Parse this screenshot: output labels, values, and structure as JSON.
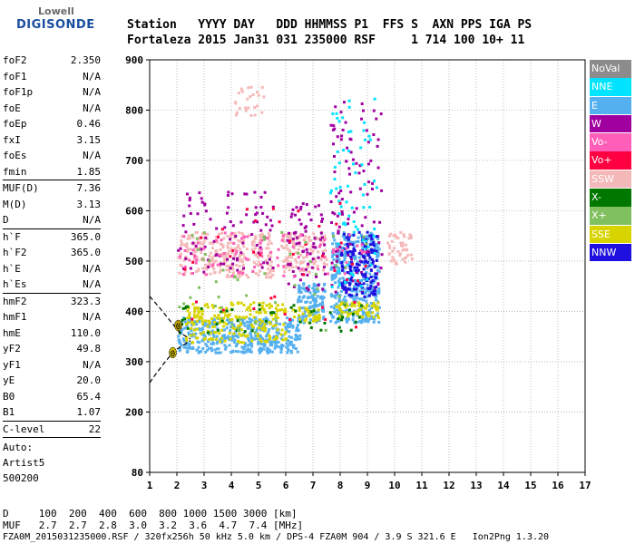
{
  "logo": {
    "line1": "Lowell",
    "line2": "DIGISONDE"
  },
  "header": {
    "labels": "Station   YYYY DAY   DDD HHMMSS P1  FFS S  AXN PPS IGA PS",
    "values": "Fortaleza 2015 Jan31 031 235000 RSF     1 714 100 10+ 11"
  },
  "params": {
    "group1": [
      {
        "k": "foF2",
        "v": "2.350"
      },
      {
        "k": "foF1",
        "v": "N/A"
      },
      {
        "k": "foF1p",
        "v": "N/A"
      },
      {
        "k": "foE",
        "v": "N/A"
      },
      {
        "k": "foEp",
        "v": "0.46"
      },
      {
        "k": "fxI",
        "v": "3.15"
      },
      {
        "k": "foEs",
        "v": "N/A"
      },
      {
        "k": "fmin",
        "v": "1.85"
      }
    ],
    "group2": [
      {
        "k": "MUF(D)",
        "v": "7.36"
      },
      {
        "k": "M(D)",
        "v": "3.13"
      },
      {
        "k": "D",
        "v": "N/A"
      }
    ],
    "group3": [
      {
        "k": "h`F",
        "v": "365.0"
      },
      {
        "k": "h`F2",
        "v": "365.0"
      },
      {
        "k": "h`E",
        "v": "N/A"
      },
      {
        "k": "h`Es",
        "v": "N/A"
      }
    ],
    "group4": [
      {
        "k": "hmF2",
        "v": "323.3"
      },
      {
        "k": "hmF1",
        "v": "N/A"
      },
      {
        "k": "hmE",
        "v": "110.0"
      },
      {
        "k": "yF2",
        "v": "49.8"
      },
      {
        "k": "yF1",
        "v": "N/A"
      },
      {
        "k": "yE",
        "v": "20.0"
      },
      {
        "k": "B0",
        "v": "65.4"
      },
      {
        "k": "B1",
        "v": "1.07"
      }
    ],
    "clevel": {
      "k": "C-level",
      "v": "22"
    },
    "auto": [
      "Auto:",
      "Artist5",
      "500200"
    ]
  },
  "legend": [
    {
      "label": "NoVal",
      "color": "#8c8c8c"
    },
    {
      "label": "NNE",
      "color": "#00e4ff"
    },
    {
      "label": "E",
      "color": "#55b0f0"
    },
    {
      "label": "W",
      "color": "#a000a0"
    },
    {
      "label": "Vo-",
      "color": "#ff5fb8"
    },
    {
      "label": "Vo+",
      "color": "#ff0040"
    },
    {
      "label": "SSW",
      "color": "#f5b8b8"
    },
    {
      "label": "X-",
      "color": "#007800"
    },
    {
      "label": "X+",
      "color": "#80c060"
    },
    {
      "label": "SSE",
      "color": "#d8d400"
    },
    {
      "label": "NNW",
      "color": "#2010e0"
    }
  ],
  "footer": {
    "line1": "D     100  200  400  600  800 1000 1500 3000 [km]",
    "line2": "MUF   2.7  2.7  2.8  3.0  3.2  3.6  4.7  7.4 [MHz]",
    "line3": "FZA0M_2015031235000.RSF / 320fx256h 50 kHz 5.0 km / DPS-4 FZA0M 904 / 3.9 S 321.6 E   Ion2Png 1.3.20"
  },
  "chart_data": {
    "type": "scatter",
    "title": "",
    "xlabel": "",
    "ylabel": "",
    "xlim": [
      1,
      17
    ],
    "ylim": [
      80,
      900
    ],
    "xticks": [
      1,
      2,
      3,
      4,
      5,
      6,
      7,
      8,
      9,
      10,
      11,
      12,
      13,
      14,
      15,
      16,
      17
    ],
    "yticks": [
      80,
      200,
      300,
      400,
      500,
      600,
      700,
      800,
      900
    ],
    "grid": true,
    "legend_position": "right",
    "clusters": [
      {
        "name": "E",
        "color": "#55b0f0",
        "x": [
          2.0,
          6.5
        ],
        "y": [
          320,
          390
        ],
        "count": 420
      },
      {
        "name": "E",
        "color": "#55b0f0",
        "x": [
          6.4,
          7.4
        ],
        "y": [
          380,
          460
        ],
        "count": 120
      },
      {
        "name": "E",
        "color": "#55b0f0",
        "x": [
          7.6,
          9.4
        ],
        "y": [
          380,
          560
        ],
        "count": 380
      },
      {
        "name": "SSE",
        "color": "#d8d400",
        "x": [
          2.3,
          6.0
        ],
        "y": [
          340,
          420
        ],
        "count": 220
      },
      {
        "name": "SSE",
        "color": "#d8d400",
        "x": [
          7.8,
          9.4
        ],
        "y": [
          390,
          420
        ],
        "count": 60
      },
      {
        "name": "SSE",
        "color": "#d8d400",
        "x": [
          6.2,
          7.2
        ],
        "y": [
          380,
          410
        ],
        "count": 40
      },
      {
        "name": "SSW",
        "color": "#f5b8b8",
        "x": [
          2.0,
          5.5
        ],
        "y": [
          470,
          560
        ],
        "count": 260
      },
      {
        "name": "SSW",
        "color": "#f5b8b8",
        "x": [
          5.8,
          7.5
        ],
        "y": [
          480,
          560
        ],
        "count": 120
      },
      {
        "name": "SSW",
        "color": "#f5b8b8",
        "x": [
          9.7,
          10.6
        ],
        "y": [
          495,
          560
        ],
        "count": 50
      },
      {
        "name": "SSW",
        "color": "#f5b8b8",
        "x": [
          4.0,
          5.2
        ],
        "y": [
          790,
          850
        ],
        "count": 25
      },
      {
        "name": "W",
        "color": "#a000a0",
        "x": [
          2.0,
          5.5
        ],
        "y": [
          480,
          640
        ],
        "count": 90
      },
      {
        "name": "W",
        "color": "#a000a0",
        "x": [
          6.0,
          7.4
        ],
        "y": [
          440,
          620
        ],
        "count": 70
      },
      {
        "name": "W",
        "color": "#a000a0",
        "x": [
          7.6,
          9.5
        ],
        "y": [
          440,
          820
        ],
        "count": 110
      },
      {
        "name": "NNW",
        "color": "#2010e0",
        "x": [
          8.0,
          9.3
        ],
        "y": [
          430,
          560
        ],
        "count": 150
      },
      {
        "name": "NNE",
        "color": "#00e4ff",
        "x": [
          7.6,
          9.3
        ],
        "y": [
          450,
          830
        ],
        "count": 70
      },
      {
        "name": "Vo-",
        "color": "#ff5fb8",
        "x": [
          2.0,
          9.0
        ],
        "y": [
          470,
          560
        ],
        "count": 80
      },
      {
        "name": "Vo+",
        "color": "#ff0040",
        "x": [
          1.9,
          8.9
        ],
        "y": [
          370,
          620
        ],
        "count": 40
      },
      {
        "name": "X-",
        "color": "#007800",
        "x": [
          1.9,
          9.0
        ],
        "y": [
          360,
          420
        ],
        "count": 50
      },
      {
        "name": "X+",
        "color": "#80c060",
        "x": [
          2.0,
          9.0
        ],
        "y": [
          360,
          560
        ],
        "count": 50
      }
    ],
    "dashed_traces": [
      {
        "x": [
          1.0,
          1.15,
          1.5,
          1.8,
          2.0,
          2.5
        ],
        "y": [
          258,
          270,
          295,
          315,
          325,
          342
        ]
      },
      {
        "x": [
          1.0,
          1.4,
          1.8,
          2.1,
          2.5
        ],
        "y": [
          430,
          405,
          378,
          358,
          345
        ]
      }
    ],
    "markers": [
      {
        "label": "0",
        "x": 1.85,
        "y": 318,
        "color": "#c8b400"
      },
      {
        "label": "0",
        "x": 2.05,
        "y": 372,
        "color": "#b8a000"
      }
    ]
  }
}
